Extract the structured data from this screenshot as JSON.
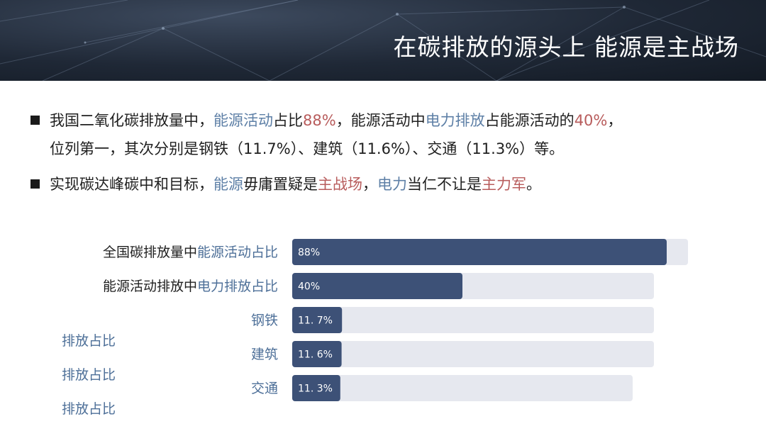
{
  "slide_title": "在碳排放的源头上  能源是主战场",
  "bullets": [
    {
      "parts": [
        {
          "text": "我国二氧化碳排放量中，",
          "style": "normal"
        },
        {
          "text": "能源活动",
          "style": "blue"
        },
        {
          "text": "占比",
          "style": "normal"
        },
        {
          "text": "88%",
          "style": "red"
        },
        {
          "text": "，能源活动中",
          "style": "normal"
        },
        {
          "text": "电力排放",
          "style": "blue"
        },
        {
          "text": "占能源活动的",
          "style": "normal"
        },
        {
          "text": "40%",
          "style": "red"
        },
        {
          "text": "，",
          "style": "normal"
        }
      ],
      "line2": "位列第一，其次分别是钢铁（11.7%）、建筑（11.6%）、交通（11.3%）等。"
    },
    {
      "parts": [
        {
          "text": "实现碳达峰碳中和目标，",
          "style": "normal"
        },
        {
          "text": "能源",
          "style": "blue"
        },
        {
          "text": "毋庸置疑是",
          "style": "normal"
        },
        {
          "text": "主战场",
          "style": "red"
        },
        {
          "text": "，",
          "style": "normal"
        },
        {
          "text": "电力",
          "style": "blue"
        },
        {
          "text": "当仁不让是",
          "style": "normal"
        },
        {
          "text": "主力军",
          "style": "red"
        },
        {
          "text": "。",
          "style": "normal"
        }
      ]
    }
  ],
  "side_labels": [
    "排放占比",
    "排放占比",
    "排放占比"
  ],
  "chart_data": {
    "type": "bar",
    "orientation": "horizontal",
    "categories": [
      {
        "prefix": "全国碳排放量中",
        "accent": "能源活动占比"
      },
      {
        "prefix": "能源活动排放中",
        "accent": "电力排放占比"
      },
      {
        "prefix": "",
        "accent": "钢铁"
      },
      {
        "prefix": "",
        "accent": "建筑"
      },
      {
        "prefix": "",
        "accent": "交通"
      }
    ],
    "values": [
      88,
      40,
      11.7,
      11.6,
      11.3
    ],
    "value_labels": [
      "88%",
      "40%",
      "11. 7%",
      "11. 6%",
      "11. 3%"
    ],
    "track_values": [
      93,
      85,
      85,
      85,
      80
    ],
    "xlim": [
      0,
      100
    ],
    "colors": {
      "bar": "#3d5177",
      "track": "#e6e8ef",
      "label": "#ffffff",
      "accent": "#4d6f98"
    }
  }
}
